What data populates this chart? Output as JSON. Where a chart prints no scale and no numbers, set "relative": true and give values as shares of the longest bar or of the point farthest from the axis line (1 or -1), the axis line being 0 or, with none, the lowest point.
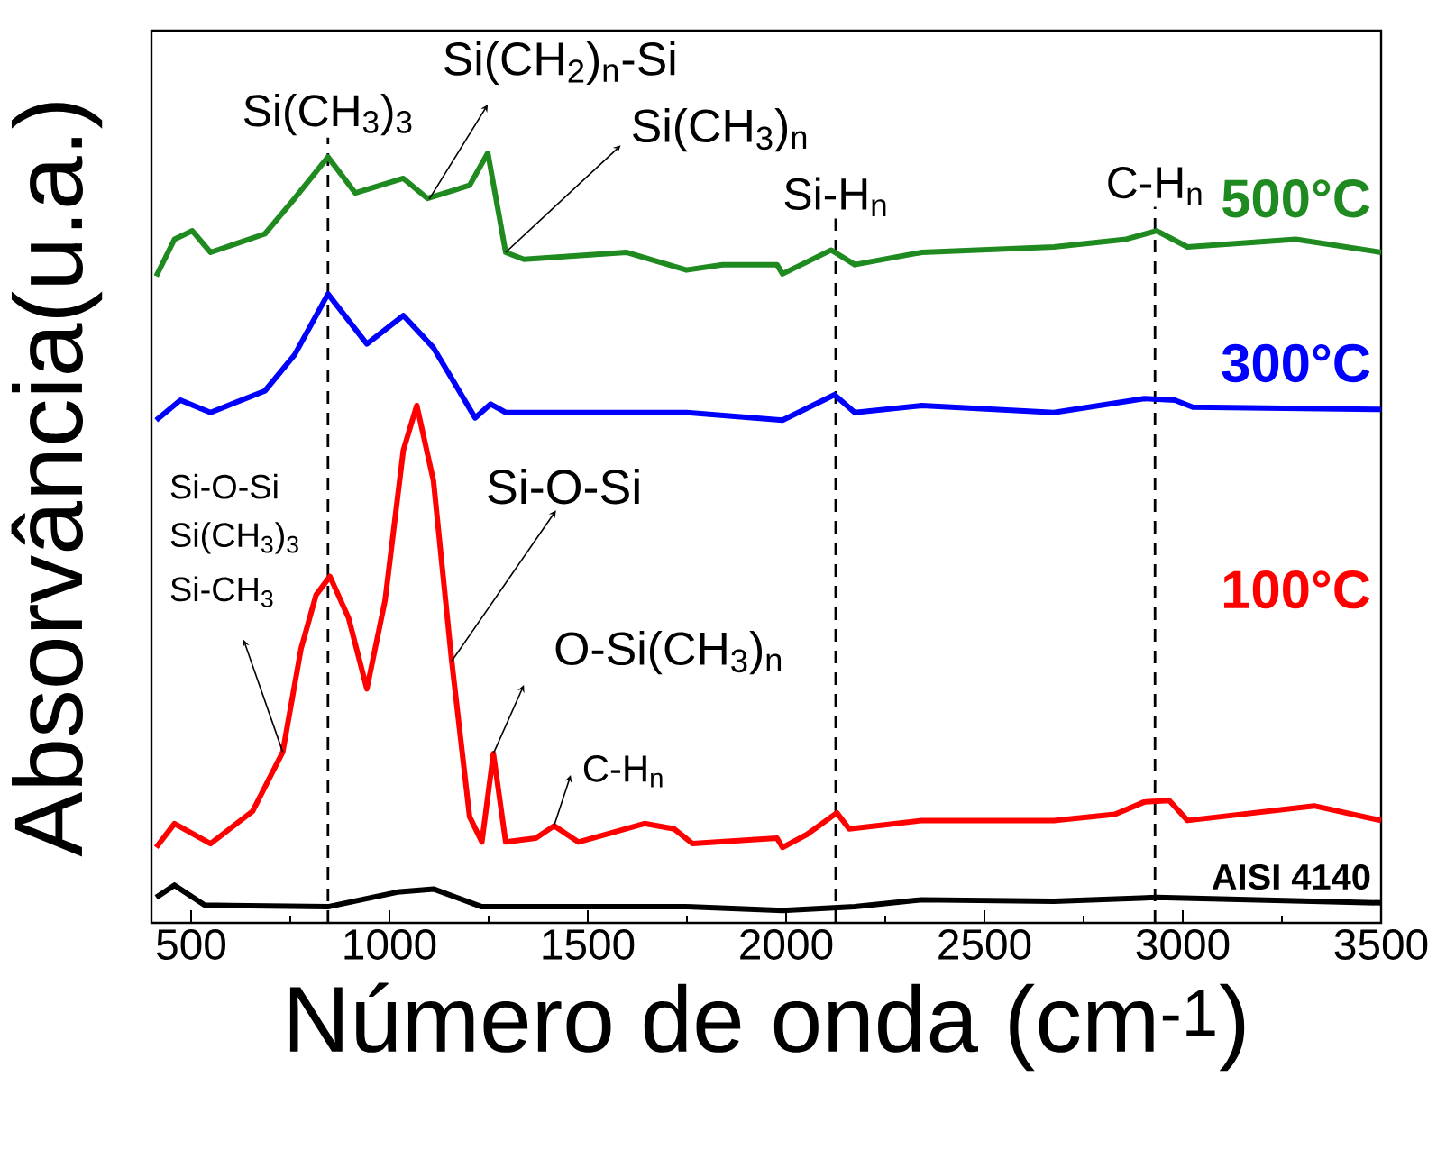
{
  "chart_data": {
    "type": "line",
    "relative": true,
    "xlabel": "Número de onda (cm$^{-1}$)",
    "ylabel": "Absorvância(u.a.)",
    "xlim": [
      400,
      3500
    ],
    "xticks": [
      500,
      1000,
      1500,
      2000,
      2500,
      3000,
      3500
    ],
    "series": [
      {
        "name": "500°C",
        "color": "#1f8a1f",
        "x": [
          412,
          458,
          503,
          549,
          686,
          761,
          845,
          914,
          1035,
          1096,
          1202,
          1248,
          1293,
          1339,
          1597,
          1749,
          1840,
          1977,
          1991,
          2114,
          2173,
          2342,
          2675,
          2857,
          2934,
          3012,
          3285,
          3500
        ],
        "values": [
          0.84,
          0.888,
          0.899,
          0.871,
          0.895,
          0.941,
          0.995,
          0.948,
          0.967,
          0.941,
          0.958,
          1.0,
          0.871,
          0.862,
          0.871,
          0.848,
          0.855,
          0.855,
          0.843,
          0.874,
          0.855,
          0.871,
          0.878,
          0.888,
          0.899,
          0.878,
          0.888,
          0.871
        ]
      },
      {
        "name": "300°C",
        "color": "#0000ff",
        "x": [
          412,
          473,
          549,
          686,
          761,
          845,
          943,
          1035,
          1111,
          1216,
          1255,
          1293,
          1749,
          1991,
          2122,
          2173,
          2342,
          2675,
          2903,
          2980,
          3025,
          3500
        ],
        "values": [
          0.653,
          0.679,
          0.663,
          0.691,
          0.738,
          0.817,
          0.752,
          0.789,
          0.747,
          0.656,
          0.674,
          0.663,
          0.663,
          0.653,
          0.686,
          0.663,
          0.672,
          0.663,
          0.681,
          0.679,
          0.67,
          0.667
        ]
      },
      {
        "name": "100°C",
        "color": "#ff0000",
        "x": [
          412,
          458,
          549,
          655,
          731,
          777,
          815,
          850,
          897,
          943,
          989,
          1035,
          1069,
          1111,
          1157,
          1202,
          1233,
          1262,
          1293,
          1369,
          1415,
          1476,
          1643,
          1718,
          1764,
          1977,
          1991,
          2053,
          2128,
          2159,
          2342,
          2675,
          2829,
          2903,
          2966,
          3012,
          3331,
          3500
        ],
        "values": [
          0.098,
          0.129,
          0.103,
          0.145,
          0.222,
          0.356,
          0.426,
          0.45,
          0.396,
          0.304,
          0.419,
          0.614,
          0.672,
          0.574,
          0.34,
          0.138,
          0.105,
          0.22,
          0.105,
          0.11,
          0.126,
          0.105,
          0.129,
          0.122,
          0.103,
          0.11,
          0.098,
          0.115,
          0.143,
          0.122,
          0.133,
          0.133,
          0.141,
          0.157,
          0.159,
          0.133,
          0.152,
          0.133
        ]
      },
      {
        "name": "AISI 4140",
        "color": "#000000",
        "x": [
          412,
          458,
          534,
          845,
          1020,
          1111,
          1233,
          1749,
          1991,
          2173,
          2342,
          2675,
          2934,
          3500
        ],
        "values": [
          0.033,
          0.049,
          0.023,
          0.021,
          0.04,
          0.044,
          0.021,
          0.021,
          0.016,
          0.021,
          0.03,
          0.028,
          0.033,
          0.026
        ]
      }
    ],
    "ref_lines": [
      {
        "axis": "x",
        "value": 845,
        "label": "Si(CH$_{3}$)$_{3}$",
        "line_style": "dashed"
      },
      {
        "axis": "x",
        "value": 2125,
        "label": "Si-H$_{n}$",
        "line_style": "dashed"
      },
      {
        "axis": "x",
        "value": 2930,
        "label": "C-H$_{n}$",
        "line_style": "dashed"
      }
    ],
    "annotations": [
      {
        "text": "Si(CH$_{2}$)$_{n}$-Si",
        "x": 1100,
        "y": 0.94
      },
      {
        "text": "Si(CH$_{3}$)$_{n}$",
        "x": 1293,
        "y": 0.871
      },
      "Si-O-Si",
      "Si(CH$_{3}$)$_{3}$",
      {
        "text": "Si-CH$_{3}$",
        "x": 731,
        "y": 0.222
      },
      {
        "text": "Si-O-Si",
        "x": 1157,
        "y": 0.34
      },
      {
        "text": "O-Si(CH$_{3}$)$_{n}$",
        "x": 1262,
        "y": 0.22
      },
      {
        "text": "C-H$_{n}$",
        "x": 1415,
        "y": 0.126
      }
    ]
  }
}
